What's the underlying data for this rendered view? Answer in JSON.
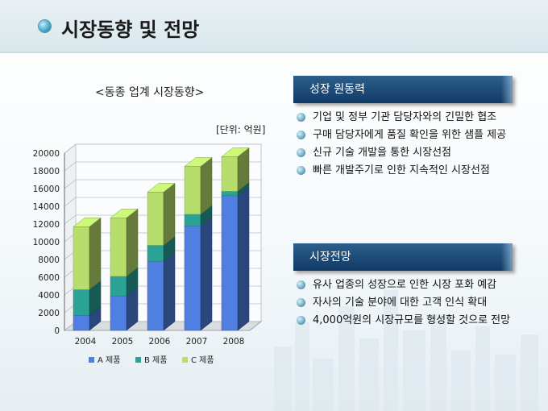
{
  "page": {
    "title": "시장동향 및 전망"
  },
  "chart_data": {
    "type": "bar",
    "stacked": true,
    "three_d": true,
    "title": "<동종 업계 시장동향>",
    "unit": "[단위: 억원]",
    "categories": [
      "2004",
      "2005",
      "2006",
      "2007",
      "2008"
    ],
    "series": [
      {
        "name": "A 제품",
        "values": [
          1700,
          3900,
          7800,
          11800,
          15200
        ],
        "color": "#4f7fe0"
      },
      {
        "name": "B 제품",
        "values": [
          2900,
          2200,
          1800,
          1300,
          500
        ],
        "color": "#2aa396"
      },
      {
        "name": "C 제품",
        "values": [
          7100,
          6600,
          6000,
          5400,
          3900
        ],
        "color": "#b7de6c"
      }
    ],
    "ylim": [
      0,
      20000
    ],
    "yticks": [
      "0",
      "2000",
      "4000",
      "6000",
      "8000",
      "10000",
      "12000",
      "14000",
      "16000",
      "18000",
      "20000"
    ],
    "grid": true,
    "legend_position": "bottom"
  },
  "sections": {
    "drivers": {
      "title": "성장 원동력",
      "items": [
        "기업 및 정부 기관 담당자와의 긴밀한 협조",
        "구매 담당자에게 품질 확인을 위한 샘플 제공",
        "신규 기술 개발을 통한 시장선점",
        "빠른 개발주기로 인한 지속적인 시장선점"
      ]
    },
    "outlook": {
      "title": "시장전망",
      "items": [
        "유사 업종의 성장으로 인한 시장 포화 예감",
        "자사의 기술 분야에 대한 고객 인식 확대",
        "4,000억원의 시장규모를 형성할 것으로 전망"
      ]
    }
  }
}
